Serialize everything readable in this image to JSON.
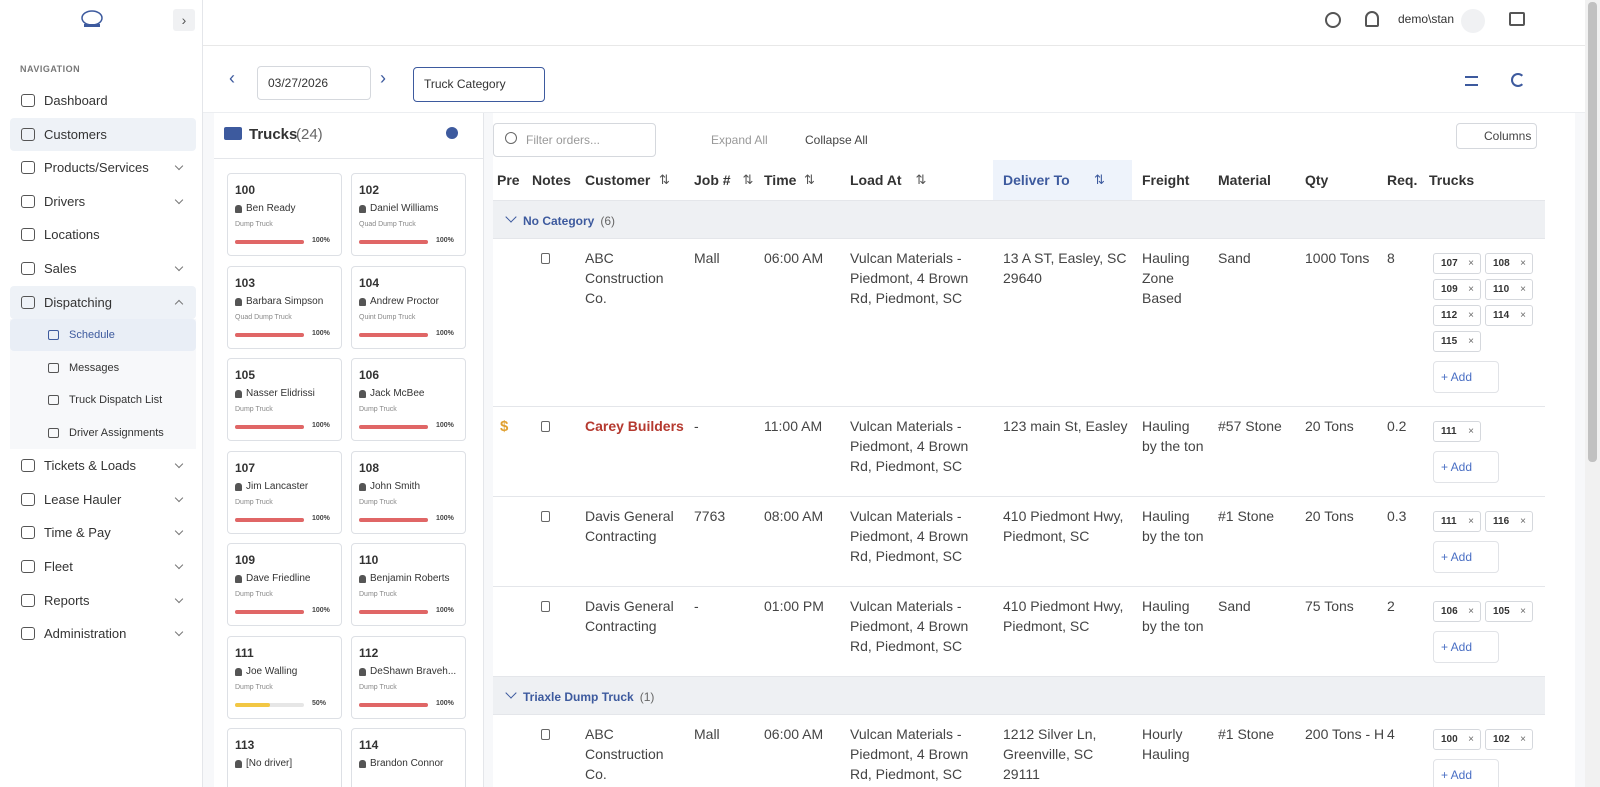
{
  "header": {
    "user": "demo\\stan"
  },
  "nav": {
    "heading": "NAVIGATION",
    "items": [
      {
        "label": "Dashboard"
      },
      {
        "label": "Customers",
        "active": true
      },
      {
        "label": "Products/Services",
        "expandable": true
      },
      {
        "label": "Drivers",
        "expandable": true
      },
      {
        "label": "Locations"
      },
      {
        "label": "Sales",
        "expandable": true
      },
      {
        "label": "Dispatching",
        "expandable": true,
        "active": true,
        "children": [
          {
            "label": "Schedule",
            "active": true
          },
          {
            "label": "Messages"
          },
          {
            "label": "Truck Dispatch List"
          },
          {
            "label": "Driver Assignments"
          }
        ]
      },
      {
        "label": "Tickets & Loads",
        "expandable": true
      },
      {
        "label": "Lease Hauler",
        "expandable": true
      },
      {
        "label": "Time & Pay",
        "expandable": true
      },
      {
        "label": "Fleet",
        "expandable": true
      },
      {
        "label": "Reports",
        "expandable": true
      },
      {
        "label": "Administration",
        "expandable": true
      }
    ]
  },
  "toolbar": {
    "date": "03/27/2026",
    "category": "Truck Category"
  },
  "trucks": {
    "title": "Trucks",
    "count": "(24)",
    "cards": [
      {
        "number": "100",
        "driver": "Ben Ready",
        "type": "Dump Truck",
        "progress": {
          "value": 100,
          "label": "100%"
        },
        "color": "#e06666"
      },
      {
        "number": "102",
        "driver": "Daniel Williams",
        "type": "Quad Dump Truck",
        "progress": {
          "value": 100,
          "label": "100%"
        },
        "color": "#e06666"
      },
      {
        "number": "103",
        "driver": "Barbara Simpson",
        "type": "Quad Dump Truck",
        "progress": {
          "value": 100,
          "label": "100%"
        },
        "color": "#e06666"
      },
      {
        "number": "104",
        "driver": "Andrew Proctor",
        "type": "Quint Dump Truck",
        "progress": {
          "value": 100,
          "label": "100%"
        },
        "color": "#e06666"
      },
      {
        "number": "105",
        "driver": "Nasser Elidrissi",
        "type": "Dump Truck",
        "progress": {
          "value": 100,
          "label": "100%"
        },
        "color": "#e06666"
      },
      {
        "number": "106",
        "driver": "Jack McBee",
        "type": "Dump Truck",
        "progress": {
          "value": 100,
          "label": "100%"
        },
        "color": "#e06666"
      },
      {
        "number": "107",
        "driver": "Jim Lancaster",
        "type": "Dump Truck",
        "progress": {
          "value": 100,
          "label": "100%"
        },
        "color": "#e06666"
      },
      {
        "number": "108",
        "driver": "John Smith",
        "type": "Dump Truck",
        "progress": {
          "value": 100,
          "label": "100%"
        },
        "color": "#e06666"
      },
      {
        "number": "109",
        "driver": "Dave Friedline",
        "type": "Dump Truck",
        "progress": {
          "value": 100,
          "label": "100%"
        },
        "color": "#e06666"
      },
      {
        "number": "110",
        "driver": "Benjamin Roberts",
        "type": "Dump Truck",
        "progress": {
          "value": 100,
          "label": "100%"
        },
        "color": "#e06666"
      },
      {
        "number": "111",
        "driver": "Joe Walling",
        "type": "Dump Truck",
        "progress": {
          "value": 50,
          "label": "50%"
        },
        "color": "#f2c744"
      },
      {
        "number": "112",
        "driver": "DeShawn Braveh...",
        "type": "Dump Truck",
        "progress": {
          "value": 100,
          "label": "100%"
        },
        "color": "#e06666"
      },
      {
        "number": "113",
        "driver": "[No driver]"
      },
      {
        "number": "114",
        "driver": "Brandon Connor"
      }
    ]
  },
  "orders": {
    "filter_placeholder": "Filter orders...",
    "expand": "Expand All",
    "collapse": "Collapse All",
    "columns_button": "Columns",
    "add_label": "+ Add",
    "columns": [
      {
        "label": "Pre"
      },
      {
        "label": "Notes"
      },
      {
        "label": "Customer",
        "sortable": true
      },
      {
        "label": "Job #",
        "sortable": true
      },
      {
        "label": "Time",
        "sortable": true
      },
      {
        "label": "Load At",
        "sortable": true
      },
      {
        "label": "Deliver To",
        "sortable": true,
        "sorted": true
      },
      {
        "label": "Freight"
      },
      {
        "label": "Material"
      },
      {
        "label": "Qty"
      },
      {
        "label": "Req."
      },
      {
        "label": "Trucks"
      }
    ],
    "groups": [
      {
        "name": "No Category",
        "count": "(6)",
        "rows": [
          {
            "customer": "ABC Construction Co.",
            "job": "Mall",
            "time": "06:00 AM",
            "load_at": "Vulcan Materials - Piedmont, 4 Brown Rd, Piedmont, SC",
            "deliver_to": "13 A ST, Easley, SC 29640",
            "freight": "Hauling Zone Based",
            "material": "Sand",
            "qty": "1000 Tons",
            "req": "8",
            "trucks": [
              "107",
              "108",
              "109",
              "110",
              "112",
              "114",
              "115"
            ]
          },
          {
            "pre": "$",
            "customer": "Carey Builders",
            "customer_color": "#b5392f",
            "job": "-",
            "time": "11:00 AM",
            "load_at": "Vulcan Materials - Piedmont, 4 Brown Rd, Piedmont, SC",
            "deliver_to": "123 main St, Easley",
            "freight": "Hauling by the ton",
            "material": "#57 Stone",
            "qty": "20 Tons",
            "req": "0.2",
            "trucks": [
              "111"
            ]
          },
          {
            "customer": "Davis General Contracting",
            "job": "7763",
            "time": "08:00 AM",
            "load_at": "Vulcan Materials - Piedmont, 4 Brown Rd, Piedmont, SC",
            "deliver_to": "410 Piedmont Hwy, Piedmont, SC",
            "freight": "Hauling by the ton",
            "material": "#1 Stone",
            "qty": "20 Tons",
            "req": "0.3",
            "trucks": [
              "111",
              "116"
            ]
          },
          {
            "customer": "Davis General Contracting",
            "job": "-",
            "time": "01:00 PM",
            "load_at": "Vulcan Materials - Piedmont, 4 Brown Rd, Piedmont, SC",
            "deliver_to": "410 Piedmont Hwy, Piedmont, SC",
            "freight": "Hauling by the ton",
            "material": "Sand",
            "qty": "75 Tons",
            "req": "2",
            "trucks": [
              "106",
              "105"
            ]
          }
        ]
      },
      {
        "name": "Triaxle Dump Truck",
        "count": "(1)",
        "rows": [
          {
            "customer": "ABC Construction Co.",
            "job": "Mall",
            "time": "06:00 AM",
            "load_at": "Vulcan Materials - Piedmont, 4 Brown Rd, Piedmont, SC",
            "deliver_to": "1212 Silver Ln, Greenville, SC 29111",
            "freight": "Hourly Hauling",
            "material": "#1 Stone",
            "qty": "200 Tons - H",
            "req": "4",
            "trucks": [
              "100",
              "102"
            ]
          }
        ]
      }
    ]
  }
}
